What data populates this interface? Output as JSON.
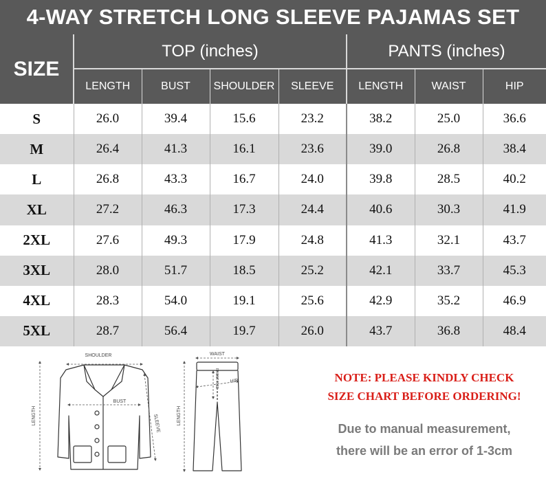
{
  "title": "4-WAY STRETCH LONG SLEEVE PAJAMAS SET",
  "table": {
    "size_header": "SIZE",
    "top_header": "TOP (inches)",
    "pants_header": "PANTS (inches)",
    "top_columns": [
      "LENGTH",
      "BUST",
      "SHOULDER",
      "SLEEVE"
    ],
    "pants_columns": [
      "LENGTH",
      "WAIST",
      "HIP"
    ],
    "rows": [
      {
        "size": "S",
        "top": [
          "26.0",
          "39.4",
          "15.6",
          "23.2"
        ],
        "pants": [
          "38.2",
          "25.0",
          "36.6"
        ]
      },
      {
        "size": "M",
        "top": [
          "26.4",
          "41.3",
          "16.1",
          "23.6"
        ],
        "pants": [
          "39.0",
          "26.8",
          "38.4"
        ]
      },
      {
        "size": "L",
        "top": [
          "26.8",
          "43.3",
          "16.7",
          "24.0"
        ],
        "pants": [
          "39.8",
          "28.5",
          "40.2"
        ]
      },
      {
        "size": "XL",
        "top": [
          "27.2",
          "46.3",
          "17.3",
          "24.4"
        ],
        "pants": [
          "40.6",
          "30.3",
          "41.9"
        ]
      },
      {
        "size": "2XL",
        "top": [
          "27.6",
          "49.3",
          "17.9",
          "24.8"
        ],
        "pants": [
          "41.3",
          "32.1",
          "43.7"
        ]
      },
      {
        "size": "3XL",
        "top": [
          "28.0",
          "51.7",
          "18.5",
          "25.2"
        ],
        "pants": [
          "42.1",
          "33.7",
          "45.3"
        ]
      },
      {
        "size": "4XL",
        "top": [
          "28.3",
          "54.0",
          "19.1",
          "25.6"
        ],
        "pants": [
          "42.9",
          "35.2",
          "46.9"
        ]
      },
      {
        "size": "5XL",
        "top": [
          "28.7",
          "56.4",
          "19.7",
          "26.0"
        ],
        "pants": [
          "43.7",
          "36.8",
          "48.4"
        ]
      }
    ]
  },
  "diagram_labels": {
    "shoulder": "SHOULDER",
    "bust": "BUST",
    "sleeve": "SLEEVE",
    "top_length": "LENGTH",
    "waist": "WAIST",
    "hip": "HIP",
    "front_rise": "FRONT RISE",
    "pants_length": "LENGTH"
  },
  "note": {
    "line1": "NOTE: PLEASE KINDLY CHECK",
    "line2": "SIZE CHART BEFORE ORDERING!"
  },
  "disclaimer": {
    "line1": "Due to manual measurement,",
    "line2": "there will be an error of 1-3cm"
  },
  "colors": {
    "header_bg": "#595959",
    "stripe": "#d9d9d9",
    "note_red": "#d91e18",
    "disclaimer_gray": "#7a7a7a"
  }
}
